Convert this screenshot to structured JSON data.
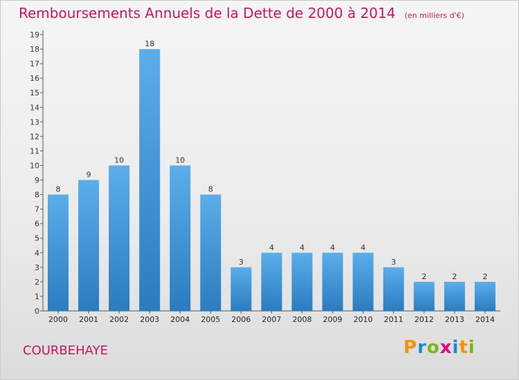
{
  "title": {
    "main": "Remboursements Annuels de la Dette de 2000 à 2014",
    "unit": "(en milliers d'€)"
  },
  "footer": {
    "commune": "COURBEHAYE",
    "logo_text": "Proxiti",
    "logo_colors": [
      "#f39200",
      "#1d8ad1",
      "#7ab51d",
      "#e5007e",
      "#1d8ad1",
      "#f39200",
      "#7ab51d"
    ]
  },
  "colors": {
    "title": "#c2185b",
    "bar_top": "#5aaeea",
    "bar_bottom": "#2a7cc0"
  },
  "chart_data": {
    "type": "bar",
    "categories": [
      "2000",
      "2001",
      "2002",
      "2003",
      "2004",
      "2005",
      "2006",
      "2007",
      "2008",
      "2009",
      "2010",
      "2011",
      "2012",
      "2013",
      "2014"
    ],
    "values": [
      8,
      9,
      10,
      18,
      10,
      8,
      3,
      4,
      4,
      4,
      4,
      3,
      2,
      2,
      2
    ],
    "ylim": [
      0,
      19
    ],
    "yticks": [
      0,
      1,
      2,
      3,
      4,
      5,
      6,
      7,
      8,
      9,
      10,
      11,
      12,
      13,
      14,
      15,
      16,
      17,
      18,
      19
    ],
    "xlabel": "",
    "ylabel": "",
    "grid": false,
    "data_labels": true
  }
}
